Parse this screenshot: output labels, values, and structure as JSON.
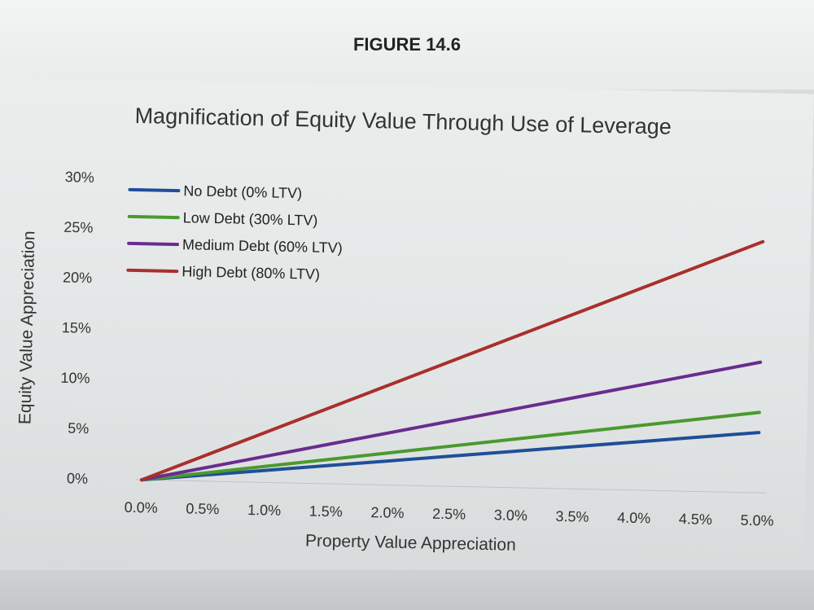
{
  "figure_label": "FIGURE 14.6",
  "chart_data": {
    "type": "line",
    "title": "Magnification of Equity Value Through Use of Leverage",
    "xlabel": "Property Value Appreciation",
    "ylabel": "Equity Value Appreciation",
    "x": [
      0.0,
      0.5,
      1.0,
      1.5,
      2.0,
      2.5,
      3.0,
      3.5,
      4.0,
      4.5,
      5.0
    ],
    "x_tick_labels": [
      "0.0%",
      "0.5%",
      "1.0%",
      "1.5%",
      "2.0%",
      "2.5%",
      "3.0%",
      "3.5%",
      "4.0%",
      "4.5%",
      "5.0%"
    ],
    "y_ticks": [
      0,
      5,
      10,
      15,
      20,
      25,
      30
    ],
    "y_tick_labels": [
      "0%",
      "5%",
      "10%",
      "15%",
      "20%",
      "25%",
      "30%"
    ],
    "ylim": [
      0,
      30
    ],
    "xlim": [
      0,
      5
    ],
    "grid": false,
    "legend_position": "top-left",
    "series": [
      {
        "name": "No Debt (0% LTV)",
        "color": "#1f4e9a",
        "values": [
          0,
          0.6,
          1.2,
          1.8,
          2.4,
          3.0,
          3.6,
          4.2,
          4.8,
          5.4,
          6.0
        ]
      },
      {
        "name": "Low Debt (30% LTV)",
        "color": "#4a9a2e",
        "values": [
          0,
          0.8,
          1.6,
          2.4,
          3.2,
          4.0,
          4.8,
          5.6,
          6.4,
          7.2,
          8.0
        ]
      },
      {
        "name": "Medium Debt (60% LTV)",
        "color": "#6a2c8f",
        "values": [
          0,
          1.3,
          2.6,
          3.9,
          5.2,
          6.5,
          7.8,
          9.1,
          10.4,
          11.7,
          13.0
        ]
      },
      {
        "name": "High Debt (80% LTV)",
        "color": "#a8302c",
        "values": [
          0,
          2.5,
          5.0,
          7.5,
          10.0,
          12.5,
          15.0,
          17.5,
          20.0,
          22.5,
          25.0
        ]
      }
    ]
  }
}
